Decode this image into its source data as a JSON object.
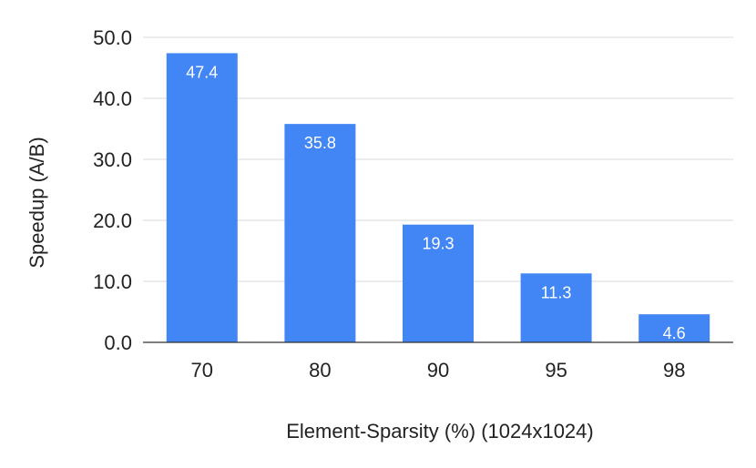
{
  "chart_data": {
    "type": "bar",
    "categories": [
      "70",
      "80",
      "90",
      "95",
      "98"
    ],
    "values": [
      47.4,
      35.8,
      19.3,
      11.3,
      4.6
    ],
    "data_labels": [
      "47.4",
      "35.8",
      "19.3",
      "11.3",
      "4.6"
    ],
    "xlabel": "Element-Sparsity (%) (1024x1024)",
    "ylabel": "Speedup (A/B)",
    "ylim": [
      0,
      50
    ],
    "yticks": [
      0,
      10,
      20,
      30,
      40,
      50
    ],
    "ytick_labels": [
      "0.0",
      "10.0",
      "20.0",
      "30.0",
      "40.0",
      "50.0"
    ],
    "bar_color": "#4285f4",
    "grid": true,
    "legend": "none"
  }
}
